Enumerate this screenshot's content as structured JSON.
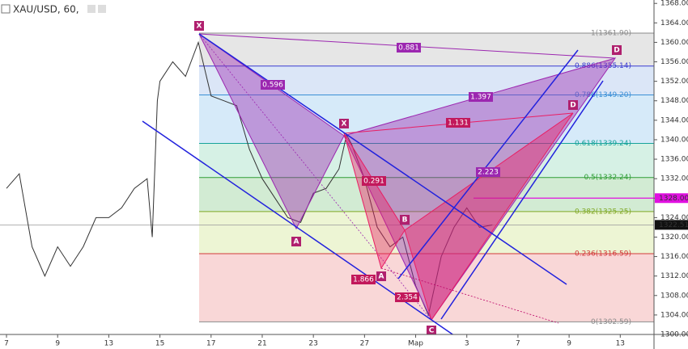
{
  "chart_data": {
    "type": "line",
    "title": "XAU/USD, 60,",
    "color": "#333333",
    "x": [
      0,
      0.25,
      0.5,
      0.75,
      1,
      1.25,
      1.5,
      1.75,
      2,
      2.25,
      2.5,
      2.75,
      2.85,
      2.95,
      3,
      3.25,
      3.5,
      3.75,
      4,
      4.25,
      4.5,
      4.75,
      5,
      5.25,
      5.5,
      5.75,
      6,
      6.25,
      6.5,
      6.65,
      6.75,
      7,
      7.25,
      7.5,
      7.75,
      8,
      8.25,
      8.5,
      8.75,
      9,
      9.25,
      9.5
    ],
    "values": [
      1330,
      1333,
      1318,
      1312,
      1318,
      1314,
      1318,
      1324,
      1324,
      1326,
      1330,
      1332,
      1320,
      1348,
      1352,
      1356,
      1353,
      1360,
      1349,
      1348,
      1347,
      1338,
      1332,
      1328,
      1324,
      1323,
      1329,
      1330,
      1334,
      1341,
      1339,
      1332,
      1322,
      1318,
      1320,
      1310,
      1304,
      1316,
      1322,
      1326,
      1322,
      1322.51
    ],
    "xlim": [
      -0.127,
      12.66
    ],
    "ylim": [
      1300,
      1368.7
    ],
    "xticks": [
      {
        "value": 0,
        "label": "7"
      },
      {
        "value": 1,
        "label": "9"
      },
      {
        "value": 2,
        "label": "13"
      },
      {
        "value": 3,
        "label": "15"
      },
      {
        "value": 4,
        "label": "17"
      },
      {
        "value": 5,
        "label": "21"
      },
      {
        "value": 6,
        "label": "23"
      },
      {
        "value": 7,
        "label": "27"
      },
      {
        "value": 8,
        "label": "Мар"
      },
      {
        "value": 9,
        "label": "3"
      },
      {
        "value": 10,
        "label": "7"
      },
      {
        "value": 11,
        "label": "9"
      },
      {
        "value": 12,
        "label": "13"
      }
    ],
    "yticks": [
      {
        "value": 1300,
        "label": "1300.00"
      },
      {
        "value": 1304,
        "label": "1304.00"
      },
      {
        "value": 1308,
        "label": "1308.00"
      },
      {
        "value": 1312,
        "label": "1312.00"
      },
      {
        "value": 1316,
        "label": "1316.00"
      },
      {
        "value": 1320,
        "label": "1320.00"
      },
      {
        "value": 1324,
        "label": "1324.00"
      },
      {
        "value": 1328,
        "label": "1328.00"
      },
      {
        "value": 1332,
        "label": "1332.00"
      },
      {
        "value": 1336,
        "label": "1336.00"
      },
      {
        "value": 1340,
        "label": "1340.00"
      },
      {
        "value": 1344,
        "label": "1344.00"
      },
      {
        "value": 1348,
        "label": "1348.00"
      },
      {
        "value": 1352,
        "label": "1352.00"
      },
      {
        "value": 1356,
        "label": "1356.00"
      },
      {
        "value": 1360,
        "label": "1360.00"
      },
      {
        "value": 1364,
        "label": "1364.00"
      },
      {
        "value": 1368,
        "label": "1368.00"
      }
    ],
    "fib_levels": [
      {
        "value": 1361.9,
        "label": "1(1361.90)",
        "color": "#8a8a8a",
        "fill": "rgba(140,140,140,0.22)"
      },
      {
        "value": 1355.14,
        "label": "0.886(1355.14)",
        "color": "#3a3ad0",
        "fill": "rgba(90,140,220,0.22)"
      },
      {
        "value": 1349.2,
        "label": "0.786(1349.20)",
        "color": "#3b8fd6",
        "fill": "rgba(90,170,230,0.25)"
      },
      {
        "value": 1339.24,
        "label": "0.618(1339.24)",
        "color": "#16a39a",
        "fill": "rgba(90,200,150,0.25)"
      },
      {
        "value": 1332.24,
        "label": "0.5(1332.24)",
        "color": "#2e9d35",
        "fill": "rgba(76,175,80,0.25)"
      },
      {
        "value": 1325.25,
        "label": "0.382(1325.25)",
        "color": "#7fa824",
        "fill": "rgba(190,220,100,0.28)"
      },
      {
        "value": 1316.59,
        "label": "0.236(1316.59)",
        "color": "#d23a3a",
        "fill": "rgba(235,110,110,0.28)"
      },
      {
        "value": 1302.59,
        "label": "0(1302.59)",
        "color": "#8a8a8a",
        "fill": "none"
      }
    ],
    "last_price": {
      "value": 1322.51,
      "label": "1322.51"
    },
    "alert": {
      "value": 1328,
      "label": "1328.00"
    },
    "patterns": [
      {
        "points": [
          "X",
          "A",
          "B",
          "C",
          "D"
        ],
        "ratios": [
          0.596,
          0.881,
          1.397,
          2.223
        ]
      },
      {
        "points": [
          "X",
          "A",
          "B",
          "C",
          "D"
        ],
        "ratios": [
          0.291,
          1.131,
          1.866,
          2.354
        ]
      }
    ]
  }
}
